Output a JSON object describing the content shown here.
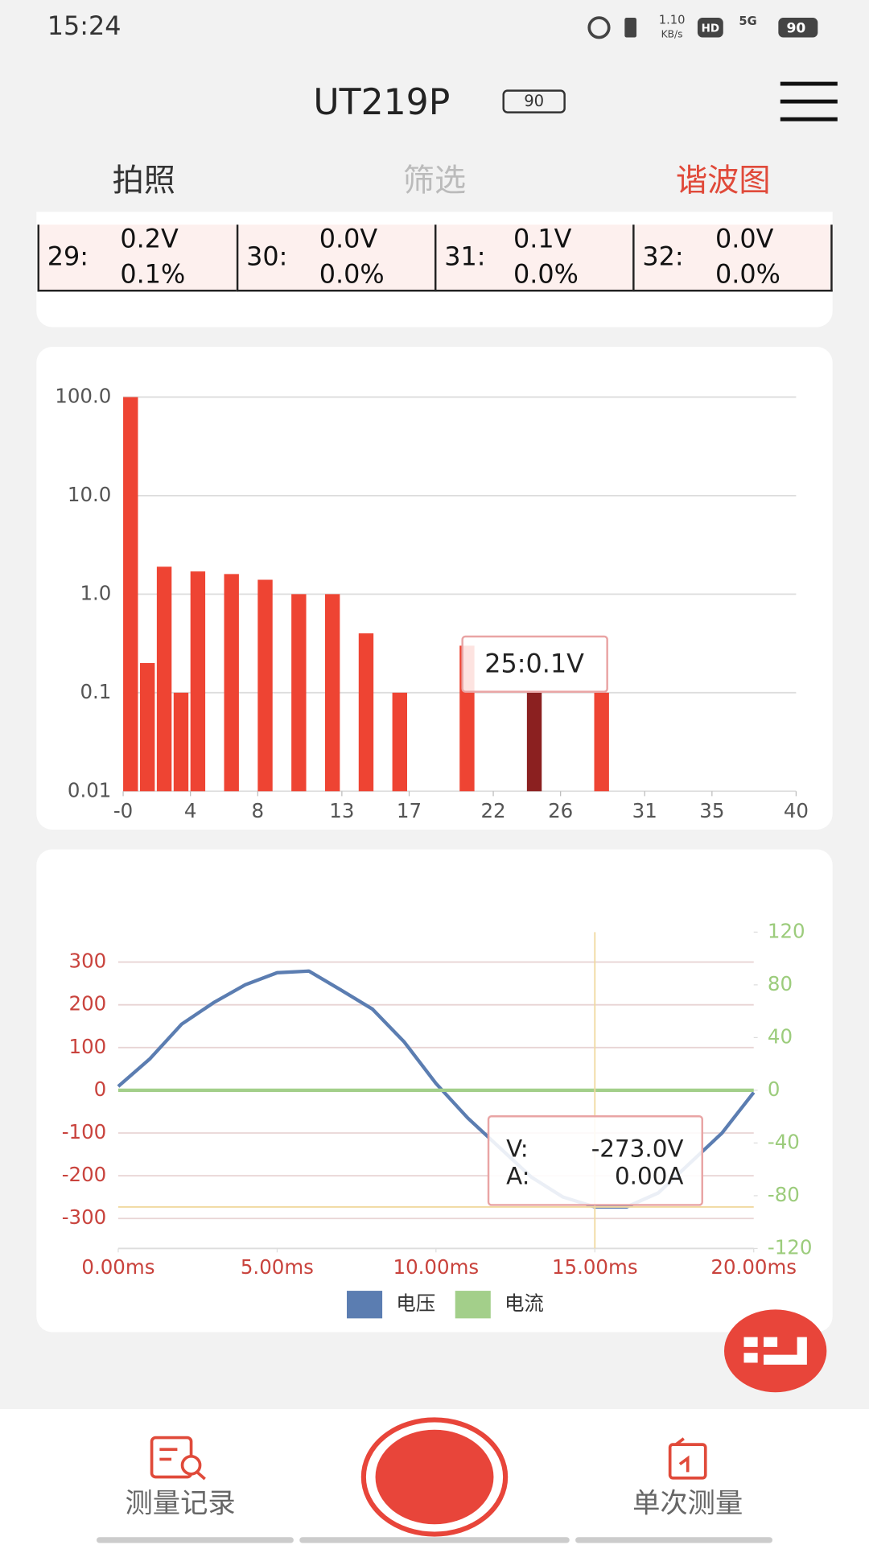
{
  "status_bar": {
    "time": "15:24",
    "speed": "1.10",
    "speed_unit": "KB/s",
    "hd": "HD",
    "network": "5G",
    "battery": "90"
  },
  "header": {
    "title": "UT219P",
    "battery": "90"
  },
  "tabs": [
    "拍照",
    "筛选",
    "谐波图"
  ],
  "harmonic_table": {
    "cells": [
      {
        "index": "29:",
        "voltage": "0.2V",
        "percent": "0.1%"
      },
      {
        "index": "30:",
        "voltage": "0.0V",
        "percent": "0.0%"
      },
      {
        "index": "31:",
        "voltage": "0.1V",
        "percent": "0.0%"
      },
      {
        "index": "32:",
        "voltage": "0.0V",
        "percent": "0.0%"
      }
    ]
  },
  "chart_data": [
    {
      "type": "bar",
      "log_scale": true,
      "grid": true,
      "color": "#ee4433",
      "highlight_color": "#8b2020",
      "x": [
        1,
        2,
        3,
        4,
        5,
        7,
        9,
        11,
        13,
        15,
        17,
        21,
        25,
        29
      ],
      "values": [
        100,
        0.2,
        1.9,
        0.1,
        1.7,
        1.6,
        1.4,
        1.0,
        1.0,
        0.4,
        0.1,
        0.3,
        0.1,
        0.1
      ],
      "selected_x": 25,
      "tooltip": "25:0.1V",
      "xlim": [
        0,
        40
      ],
      "xticks": [
        {
          "value": 0,
          "label": "-0"
        },
        4,
        8,
        13,
        17,
        22,
        26,
        31,
        35,
        40
      ],
      "ylim": [
        0.01,
        100
      ],
      "yticks": [
        {
          "value": 100,
          "label": "100.0"
        },
        {
          "value": 10,
          "label": "10.0"
        },
        {
          "value": 1,
          "label": "1.0"
        },
        0.1,
        0.01
      ]
    },
    {
      "type": "line",
      "grid": true,
      "x_color": "#c9433d",
      "y_color": "#c9433d",
      "y2_color": "#9ccc7c",
      "x": [
        0,
        1,
        2,
        3,
        4,
        5,
        6,
        7,
        8,
        9,
        10,
        11,
        12,
        13,
        14,
        15,
        16,
        17,
        18,
        19,
        20
      ],
      "series": [
        {
          "name": "电压",
          "color": "#5b7db1",
          "axis": "y",
          "values": [
            9,
            74,
            155,
            205,
            247,
            275,
            279,
            235,
            190,
            113,
            16,
            -65,
            -134,
            -203,
            -250,
            -273,
            -273,
            -240,
            -170,
            -100,
            -5
          ]
        },
        {
          "name": "电流",
          "color": "#a3cf8a",
          "axis": "y2",
          "values": [
            0,
            0,
            0,
            0,
            0,
            0,
            0,
            0,
            0,
            0,
            0,
            0,
            0,
            0,
            0,
            0,
            0,
            0,
            0,
            0,
            0
          ]
        }
      ],
      "cursor": {
        "x": 15,
        "y": -273
      },
      "tooltip": [
        {
          "label": "V:",
          "value": "-273.0V"
        },
        {
          "label": "A:",
          "value": "0.00A"
        }
      ],
      "xlim": [
        0,
        20
      ],
      "xticks": [
        {
          "value": 0,
          "label": "0.00ms"
        },
        {
          "value": 5,
          "label": "5.00ms"
        },
        {
          "value": 10,
          "label": "10.00ms"
        },
        {
          "value": 15,
          "label": "15.00ms"
        },
        {
          "value": 20,
          "label": "20.00ms"
        }
      ],
      "ylim": [
        -370,
        370
      ],
      "yticks": [
        300,
        200,
        100,
        0,
        -100,
        -200,
        -300
      ],
      "y2lim": [
        -120,
        120
      ],
      "y2ticks": [
        120,
        80,
        40,
        0,
        -40,
        -80,
        -120
      ]
    }
  ],
  "bottom_nav": {
    "records": "测量记录",
    "single": "单次测量"
  }
}
